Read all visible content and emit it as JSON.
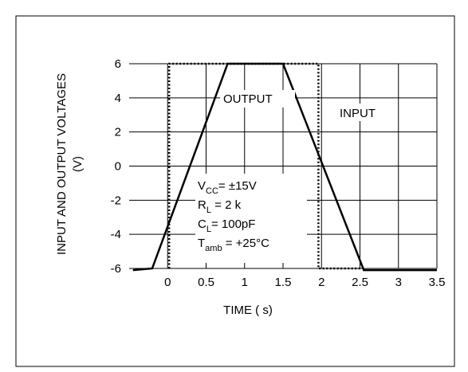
{
  "chart_data": {
    "type": "line",
    "title": "",
    "xlabel": "TIME (  s)",
    "ylabel": "INPUT AND OUTPUT VOLTAGES",
    "ylabel_unit": "(V)",
    "xlim": [
      -0.5,
      3.5
    ],
    "ylim": [
      -6,
      6
    ],
    "x_ticks": [
      0,
      0.5,
      1,
      1.5,
      2,
      2.5,
      3,
      3.5
    ],
    "x_tick_labels": [
      "0",
      "0.5",
      "1",
      "1.5",
      "2",
      "2.5",
      "3",
      "3.5"
    ],
    "y_ticks": [
      6,
      4,
      2,
      0,
      -2,
      -4,
      -6
    ],
    "y_tick_labels": [
      "6",
      "4",
      "2",
      "0",
      "-2",
      "-4",
      "-6"
    ],
    "grid": true,
    "series": [
      {
        "name": "OUTPUT",
        "style": "solid",
        "color": "#000000",
        "x": [
          -0.45,
          -0.2,
          0.78,
          1.5,
          2.55,
          3.5
        ],
        "y": [
          -6.1,
          -6.0,
          6.0,
          6.0,
          -6.1,
          -6.1
        ]
      },
      {
        "name": "INPUT",
        "style": "dotted",
        "color": "#000000",
        "x": [
          0.02,
          0.02,
          1.96,
          1.96,
          2.5
        ],
        "y": [
          -6.0,
          6.0,
          6.0,
          -6.0,
          -6.0
        ]
      }
    ],
    "annotations": {
      "output_label": "OUTPUT",
      "input_label": "INPUT",
      "conditions": [
        {
          "main": "V",
          "sub": "CC",
          "rest": "= ±15V"
        },
        {
          "main": "R",
          "sub": "L",
          "rest": " = 2 k"
        },
        {
          "main": "C",
          "sub": "L",
          "rest": "= 100pF"
        },
        {
          "main": "T",
          "sub": "amb",
          "rest": " = +25°C"
        }
      ]
    }
  }
}
